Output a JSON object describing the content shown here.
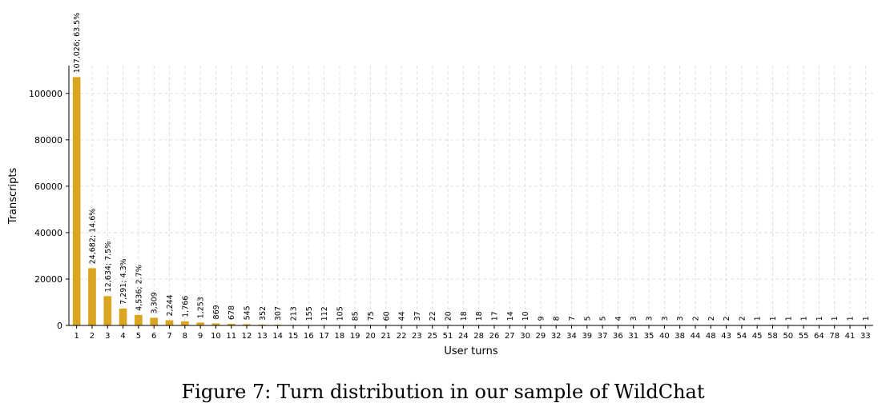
{
  "caption": "Figure 7: Turn distribution in our sample of WildChat",
  "chart_data": {
    "type": "bar",
    "xlabel": "User turns",
    "ylabel": "Transcripts",
    "ylim": [
      0,
      112000
    ],
    "yticks": [
      0,
      20000,
      40000,
      60000,
      80000,
      100000
    ],
    "grid": true,
    "bar_color": "#daa520",
    "categories": [
      "1",
      "2",
      "3",
      "4",
      "5",
      "6",
      "7",
      "8",
      "9",
      "10",
      "11",
      "12",
      "13",
      "14",
      "15",
      "16",
      "17",
      "18",
      "19",
      "20",
      "21",
      "22",
      "23",
      "25",
      "51",
      "24",
      "28",
      "26",
      "27",
      "30",
      "29",
      "32",
      "34",
      "39",
      "37",
      "36",
      "31",
      "35",
      "40",
      "38",
      "44",
      "48",
      "43",
      "54",
      "45",
      "58",
      "50",
      "55",
      "64",
      "78",
      "41",
      "33"
    ],
    "values": [
      107026,
      24682,
      12634,
      7291,
      4536,
      3309,
      2244,
      1766,
      1253,
      869,
      678,
      545,
      352,
      307,
      213,
      155,
      112,
      105,
      85,
      75,
      60,
      44,
      37,
      22,
      20,
      18,
      18,
      17,
      14,
      10,
      9,
      8,
      7,
      5,
      5,
      4,
      3,
      3,
      3,
      3,
      2,
      2,
      2,
      2,
      1,
      1,
      1,
      1,
      1,
      1,
      1,
      1
    ],
    "labels": [
      "107,026; 63.5%",
      "24,682; 14.6%",
      "12,634; 7.5%",
      "7,291; 4.3%",
      "4,536; 2.7%",
      "3,309",
      "2,244",
      "1,766",
      "1,253",
      "869",
      "678",
      "545",
      "352",
      "307",
      "213",
      "155",
      "112",
      "105",
      "85",
      "75",
      "60",
      "44",
      "37",
      "22",
      "20",
      "18",
      "18",
      "17",
      "14",
      "10",
      "9",
      "8",
      "7",
      "5",
      "5",
      "4",
      "3",
      "3",
      "3",
      "3",
      "2",
      "2",
      "2",
      "2",
      "1",
      "1",
      "1",
      "1",
      "1",
      "1",
      "1",
      "1"
    ]
  }
}
